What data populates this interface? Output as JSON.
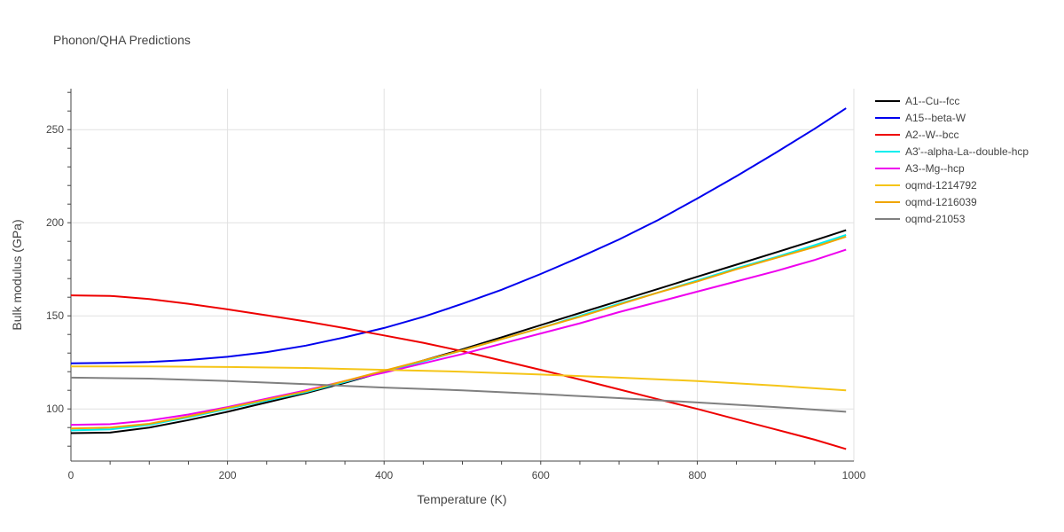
{
  "chart_data": {
    "type": "line",
    "title": "Phonon/QHA Predictions",
    "xlabel": "Temperature (K)",
    "ylabel": "Bulk modulus (GPa)",
    "xlim": [
      0,
      1000
    ],
    "ylim": [
      72,
      272
    ],
    "xticks": [
      0,
      200,
      400,
      600,
      800,
      1000
    ],
    "yticks": [
      100,
      150,
      200,
      250
    ],
    "grid": true,
    "legend_position": "right",
    "series": [
      {
        "name": "A1--Cu--fcc",
        "color": "#000000",
        "x": [
          0,
          50,
          100,
          150,
          200,
          250,
          300,
          350,
          400,
          450,
          500,
          550,
          600,
          650,
          700,
          750,
          800,
          850,
          900,
          950,
          990
        ],
        "y": [
          87,
          87.3,
          90,
          94,
          98.5,
          103.5,
          108.5,
          114,
          120,
          126,
          132,
          138.5,
          145,
          151.5,
          158,
          164.5,
          171,
          177.5,
          184,
          190.5,
          196
        ]
      },
      {
        "name": "A15--beta-W",
        "color": "#0000ee",
        "x": [
          0,
          50,
          100,
          150,
          200,
          250,
          300,
          350,
          400,
          450,
          500,
          550,
          600,
          650,
          700,
          750,
          800,
          850,
          900,
          950,
          990
        ],
        "y": [
          124.5,
          124.7,
          125.2,
          126.3,
          128,
          130.5,
          134,
          138.5,
          143.5,
          149.5,
          156.5,
          164,
          172.5,
          181.5,
          191,
          201.5,
          213,
          225,
          237.5,
          250.5,
          261.5
        ]
      },
      {
        "name": "A2--W--bcc",
        "color": "#ee0000",
        "x": [
          0,
          50,
          100,
          150,
          200,
          250,
          300,
          350,
          400,
          450,
          500,
          550,
          600,
          650,
          700,
          750,
          800,
          850,
          900,
          950,
          990
        ],
        "y": [
          161,
          160.7,
          159,
          156.5,
          153.5,
          150.3,
          147,
          143.4,
          139.5,
          135.5,
          131,
          126,
          121,
          115.8,
          110.5,
          105.2,
          100,
          94.5,
          89,
          83.5,
          78.5
        ]
      },
      {
        "name": "A3'--alpha-La--double-hcp",
        "color": "#00eeee",
        "x": [
          0,
          50,
          100,
          150,
          200,
          250,
          300,
          350,
          400,
          450,
          500,
          550,
          600,
          650,
          700,
          750,
          800,
          850,
          900,
          950,
          990
        ],
        "y": [
          88.5,
          89,
          91.5,
          95.5,
          100,
          104.5,
          109,
          114.5,
          120,
          125.5,
          131.5,
          137.5,
          143.5,
          150,
          156.5,
          162.5,
          169,
          175.5,
          181.5,
          188,
          193.5
        ]
      },
      {
        "name": "A3--Mg--hcp",
        "color": "#ee00ee",
        "x": [
          0,
          50,
          100,
          150,
          200,
          250,
          300,
          350,
          400,
          450,
          500,
          550,
          600,
          650,
          700,
          750,
          800,
          850,
          900,
          950,
          990
        ],
        "y": [
          91.5,
          91.8,
          93.8,
          97,
          101,
          105.5,
          110,
          115,
          119.5,
          124.5,
          129.5,
          135,
          140.5,
          146,
          152,
          157.5,
          163,
          168.5,
          174,
          180,
          185.5
        ]
      },
      {
        "name": "oqmd-1214792",
        "color": "#f5c518",
        "x": [
          0,
          100,
          200,
          300,
          400,
          500,
          600,
          700,
          800,
          900,
          990
        ],
        "y": [
          122.8,
          122.8,
          122.5,
          122,
          121,
          120,
          118.5,
          116.8,
          115,
          112.5,
          110
        ]
      },
      {
        "name": "oqmd-1216039",
        "color": "#f0a500",
        "x": [
          0,
          50,
          100,
          150,
          200,
          250,
          300,
          350,
          400,
          450,
          500,
          550,
          600,
          650,
          700,
          750,
          800,
          850,
          900,
          950,
          990
        ],
        "y": [
          89.5,
          90,
          92,
          96,
          100.5,
          105,
          109.5,
          115,
          120.5,
          126,
          131.5,
          137.5,
          143.5,
          149.5,
          156,
          162.5,
          168.5,
          175,
          181,
          187,
          192.5
        ]
      },
      {
        "name": "oqmd-21053",
        "color": "#808080",
        "x": [
          0,
          100,
          200,
          300,
          400,
          500,
          600,
          700,
          800,
          900,
          990
        ],
        "y": [
          116.8,
          116.3,
          115,
          113.3,
          111.5,
          110,
          108,
          105.8,
          103.5,
          101,
          98.5
        ]
      }
    ]
  }
}
